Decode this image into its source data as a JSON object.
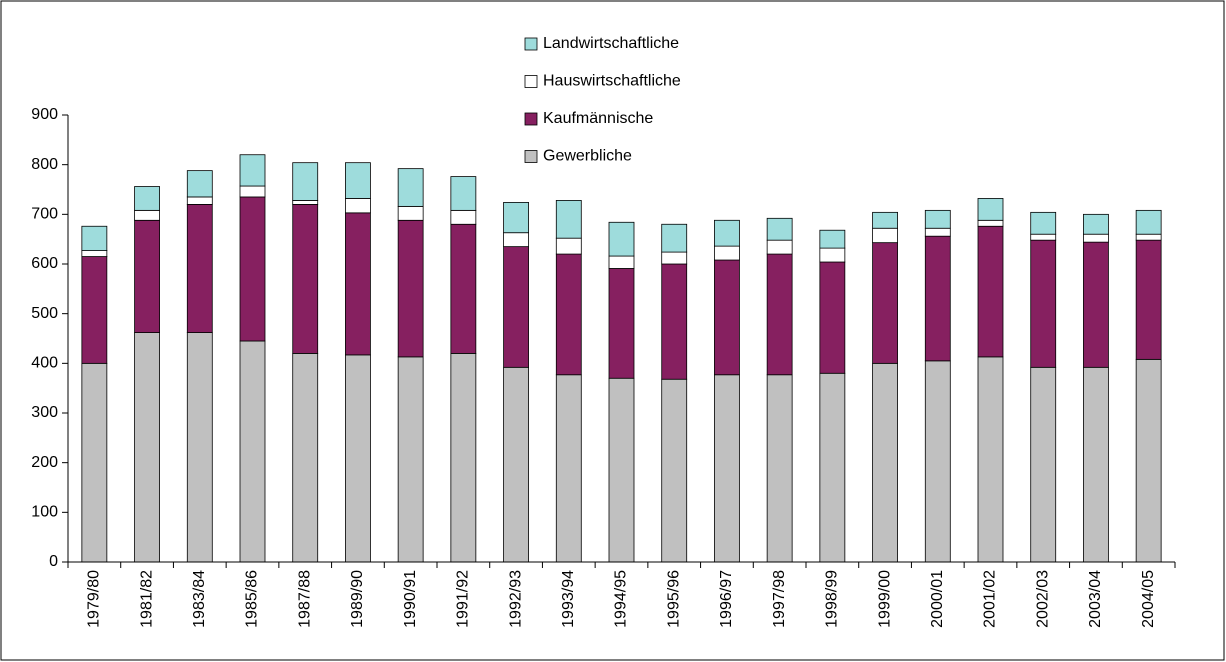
{
  "chart_data": {
    "type": "stacked_bar",
    "categories": [
      "1979/80",
      "1981/82",
      "1983/84",
      "1985/86",
      "1987/88",
      "1989/90",
      "1990/91",
      "1991/92",
      "1992/93",
      "1993/94",
      "1994/95",
      "1995/96",
      "1996/97",
      "1997/98",
      "1998/99",
      "1999/00",
      "2000/01",
      "2001/02",
      "2002/03",
      "2003/04",
      "2004/05"
    ],
    "series": [
      {
        "name": "Gewerbliche",
        "color": "#c0c0c0",
        "values": [
          400,
          462,
          462,
          445,
          420,
          417,
          413,
          420,
          392,
          377,
          370,
          368,
          377,
          377,
          380,
          400,
          405,
          413,
          392,
          392,
          408
        ]
      },
      {
        "name": "Kaufmännische",
        "color": "#862060",
        "values": [
          215,
          226,
          258,
          290,
          300,
          286,
          275,
          260,
          243,
          243,
          221,
          232,
          231,
          243,
          224,
          243,
          251,
          263,
          256,
          252,
          240
        ]
      },
      {
        "name": "Hauswirtschaftliche",
        "color": "#ffffff",
        "values": [
          12,
          20,
          15,
          22,
          8,
          29,
          28,
          28,
          28,
          32,
          25,
          24,
          28,
          28,
          28,
          29,
          16,
          12,
          12,
          16,
          12
        ]
      },
      {
        "name": "Landwirtschaftliche",
        "color": "#9edcdc",
        "values": [
          49,
          48,
          53,
          63,
          76,
          72,
          76,
          68,
          61,
          76,
          68,
          56,
          52,
          44,
          36,
          32,
          36,
          44,
          44,
          40,
          48
        ]
      }
    ],
    "ylim": [
      0,
      900
    ],
    "yticks": [
      0,
      100,
      200,
      300,
      400,
      500,
      600,
      700,
      800,
      900
    ],
    "legend": "top-center"
  }
}
